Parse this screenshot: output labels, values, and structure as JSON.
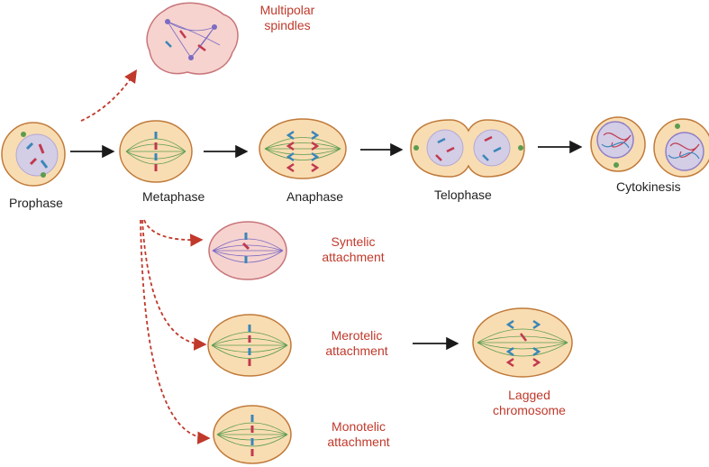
{
  "colors": {
    "cell_fill": "#f9ddb2",
    "cell_border": "#c07a3a",
    "abnormal_fill": "#f6d3cf",
    "abnormal_border": "#c8757a",
    "nucleus_fill": "#d3cde6",
    "spindle_green": "#5b9c4f",
    "spindle_purple": "#7b6bc3",
    "chromosome_blue": "#3a86b8",
    "chromosome_red": "#c0394f",
    "arrow_black": "#1a1a1a",
    "arrow_red": "#c0392b",
    "label_black": "#222222",
    "label_red": "#c0392b"
  },
  "labels": {
    "prophase": "Prophase",
    "metaphase": "Metaphase",
    "anaphase": "Anaphase",
    "telophase": "Telophase",
    "cytokinesis": "Cytokinesis",
    "multipolar": "Multipolar spindles",
    "syntelic": "Syntelic attachment",
    "merotelic": "Merotelic attachment",
    "monotelic": "Monotelic attachment",
    "lagged": "Lagged chromosome"
  }
}
